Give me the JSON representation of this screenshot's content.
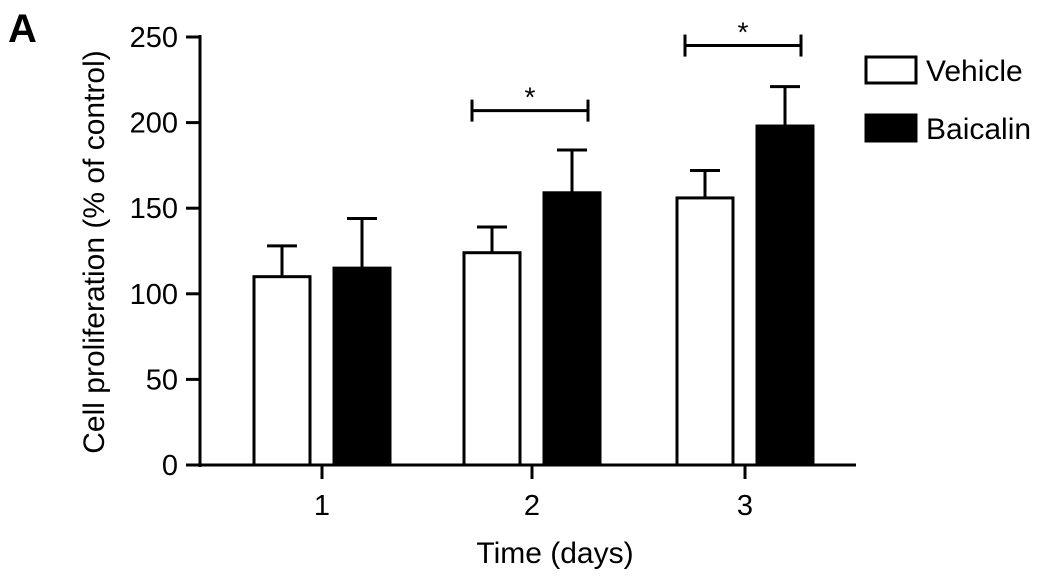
{
  "panel_label": "A",
  "chart_data": {
    "type": "bar",
    "title": "",
    "xlabel": "Time (days)",
    "ylabel": "Cell proliferation (% of control)",
    "categories": [
      "1",
      "2",
      "3"
    ],
    "ylim": [
      0,
      250
    ],
    "yticks": [
      0,
      50,
      100,
      150,
      200,
      250
    ],
    "grid": false,
    "legend_position": "top-right",
    "series": [
      {
        "name": "Vehicle",
        "fill": "#ffffff",
        "stroke": "#000000",
        "values": [
          110,
          124,
          156
        ],
        "errors": [
          18,
          15,
          16
        ]
      },
      {
        "name": "Baicalin",
        "fill": "#000000",
        "stroke": "#000000",
        "values": [
          115,
          159,
          198
        ],
        "errors": [
          29,
          25,
          23
        ]
      }
    ],
    "significance": [
      {
        "category": "2",
        "label": "*",
        "y": 207
      },
      {
        "category": "3",
        "label": "*",
        "y": 245
      }
    ]
  }
}
